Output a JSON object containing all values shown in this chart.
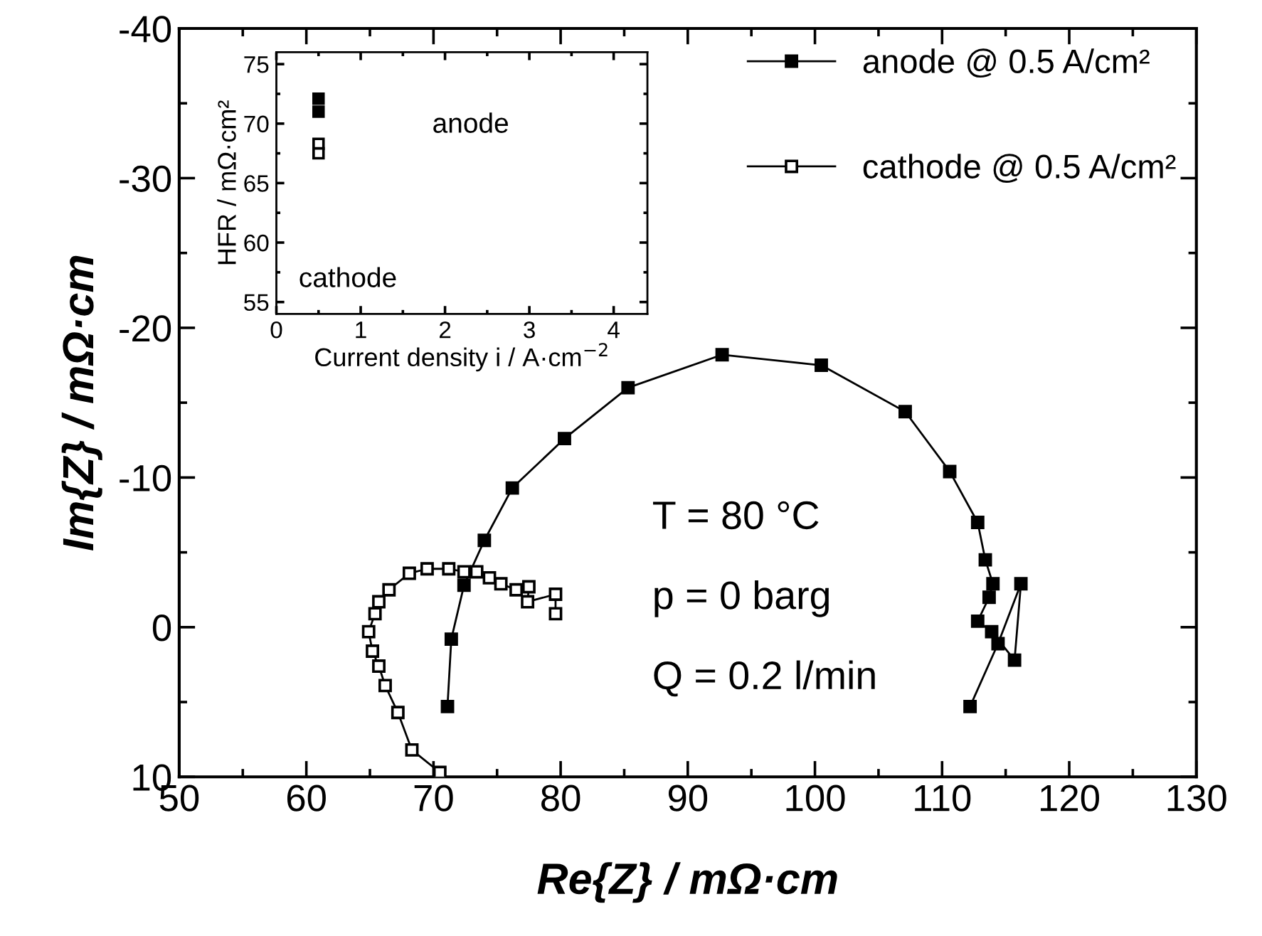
{
  "chart_data": [
    {
      "type": "line",
      "xlabel": "Re{Z} / mΩ·cm",
      "ylabel": "Im{Z} / mΩ·cm",
      "xlim": [
        50,
        130
      ],
      "ylim": [
        10,
        -40
      ],
      "xticks": [
        50,
        60,
        70,
        80,
        90,
        100,
        110,
        120,
        130
      ],
      "yticks": [
        10,
        0,
        -10,
        -20,
        -30,
        -40
      ],
      "marker": "square",
      "line_style": "solid",
      "legend": "top right",
      "grid": false,
      "annotations": [
        "T = 80 °C",
        "p = 0 barg",
        "Q = 0.2 l/min"
      ],
      "series": [
        {
          "name": "anode @ 0.5 A/cm²",
          "color": "#000000",
          "x": [
            71.1,
            71.4,
            72.4,
            74.0,
            76.2,
            80.3,
            85.3,
            92.7,
            100.5,
            107.1,
            110.6,
            112.8,
            113.4,
            114.0,
            113.7,
            112.8,
            113.9,
            115.7,
            116.2,
            114.4,
            112.2
          ],
          "values": [
            5.3,
            0.8,
            -2.8,
            -5.8,
            -9.3,
            -12.6,
            -16.0,
            -18.2,
            -17.5,
            -14.4,
            -10.4,
            -7.0,
            -4.5,
            -2.9,
            -2.0,
            -0.4,
            0.3,
            2.2,
            -2.9,
            1.1,
            5.3
          ]
        },
        {
          "name": "cathode @ 0.5 A/cm²",
          "color": "#000000",
          "x": [
            70.5,
            68.3,
            67.2,
            66.2,
            65.7,
            65.2,
            64.9,
            65.4,
            65.7,
            66.5,
            68.1,
            69.5,
            71.2,
            72.4,
            73.4,
            74.4,
            75.3,
            76.5,
            77.5,
            77.4,
            79.6,
            79.6
          ],
          "values": [
            9.7,
            8.2,
            5.7,
            3.9,
            2.6,
            1.6,
            0.3,
            -0.9,
            -1.7,
            -2.5,
            -3.6,
            -3.9,
            -3.9,
            -3.7,
            -3.7,
            -3.3,
            -2.9,
            -2.5,
            -2.7,
            -1.7,
            -2.2,
            -0.9
          ]
        }
      ]
    },
    {
      "type": "scatter",
      "xlabel": "Current density i / A·cm$^{−2}$",
      "ylabel": "HFR / mΩ·cm²",
      "xlim": [
        0,
        4.4
      ],
      "ylim": [
        54,
        76
      ],
      "xticks": [
        0,
        1,
        2,
        3,
        4
      ],
      "yticks": [
        55,
        60,
        65,
        70,
        75
      ],
      "marker": "square",
      "grid": false,
      "annotations": [
        "anode",
        "cathode"
      ],
      "series": [
        {
          "color": "#000000",
          "x": [
            0.5,
            0.5
          ],
          "values": [
            72.1,
            71.0
          ]
        },
        {
          "color": "#000000",
          "x": [
            0.5,
            0.5
          ],
          "values": [
            68.3,
            67.5
          ]
        }
      ]
    }
  ]
}
